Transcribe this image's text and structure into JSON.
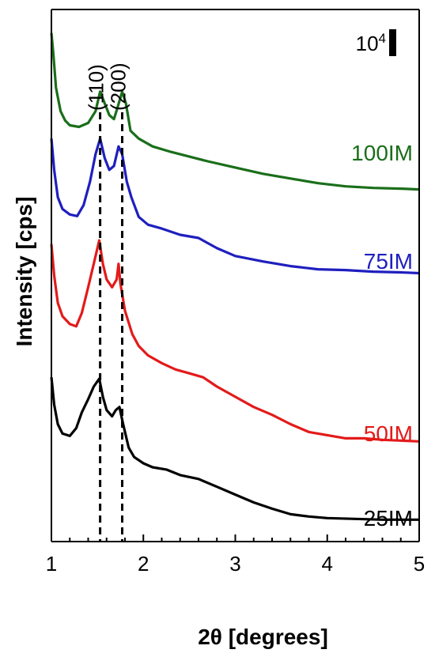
{
  "chart_data": {
    "type": "line",
    "xlabel": "2θ [degrees]",
    "ylabel": "Intensity [cps]",
    "xlim": [
      1,
      5
    ],
    "x_ticks": [
      "1",
      "2",
      "3",
      "4",
      "5"
    ],
    "y_ticks_shown": false,
    "grid": false,
    "scale_bar": {
      "label": "10",
      "exponent": "4"
    },
    "reference_lines": [
      {
        "label": "(110)",
        "x": 1.53
      },
      {
        "label": "(200)",
        "x": 1.77
      }
    ],
    "series": [
      {
        "name": "100IM",
        "color": "#1a6e1a",
        "points": [
          [
            1.0,
            8.3
          ],
          [
            1.02,
            8.05
          ],
          [
            1.05,
            7.6
          ],
          [
            1.1,
            7.3
          ],
          [
            1.15,
            7.18
          ],
          [
            1.2,
            7.12
          ],
          [
            1.3,
            7.1
          ],
          [
            1.4,
            7.15
          ],
          [
            1.48,
            7.3
          ],
          [
            1.53,
            7.55
          ],
          [
            1.58,
            7.4
          ],
          [
            1.63,
            7.25
          ],
          [
            1.68,
            7.2
          ],
          [
            1.72,
            7.35
          ],
          [
            1.77,
            7.55
          ],
          [
            1.81,
            7.4
          ],
          [
            1.86,
            7.05
          ],
          [
            1.95,
            6.95
          ],
          [
            2.1,
            6.85
          ],
          [
            2.3,
            6.78
          ],
          [
            2.5,
            6.72
          ],
          [
            2.7,
            6.66
          ],
          [
            3.0,
            6.58
          ],
          [
            3.3,
            6.5
          ],
          [
            3.6,
            6.44
          ],
          [
            3.9,
            6.38
          ],
          [
            4.2,
            6.34
          ],
          [
            4.5,
            6.32
          ],
          [
            4.8,
            6.31
          ],
          [
            5.0,
            6.3
          ]
        ]
      },
      {
        "name": "75IM",
        "color": "#1f1fbf",
        "points": [
          [
            1.0,
            6.95
          ],
          [
            1.03,
            6.55
          ],
          [
            1.07,
            6.2
          ],
          [
            1.12,
            6.05
          ],
          [
            1.2,
            5.98
          ],
          [
            1.28,
            5.96
          ],
          [
            1.35,
            6.1
          ],
          [
            1.42,
            6.4
          ],
          [
            1.48,
            6.75
          ],
          [
            1.53,
            6.95
          ],
          [
            1.58,
            6.7
          ],
          [
            1.63,
            6.55
          ],
          [
            1.68,
            6.6
          ],
          [
            1.73,
            6.85
          ],
          [
            1.77,
            6.75
          ],
          [
            1.82,
            6.4
          ],
          [
            1.87,
            6.2
          ],
          [
            1.95,
            5.95
          ],
          [
            2.05,
            5.85
          ],
          [
            2.2,
            5.8
          ],
          [
            2.4,
            5.72
          ],
          [
            2.6,
            5.68
          ],
          [
            2.8,
            5.55
          ],
          [
            3.0,
            5.45
          ],
          [
            3.3,
            5.38
          ],
          [
            3.6,
            5.32
          ],
          [
            3.9,
            5.28
          ],
          [
            4.2,
            5.27
          ],
          [
            4.5,
            5.25
          ],
          [
            4.8,
            5.24
          ],
          [
            5.0,
            5.23
          ]
        ]
      },
      {
        "name": "50IM",
        "color": "#e41a1a",
        "points": [
          [
            1.0,
            5.6
          ],
          [
            1.03,
            5.2
          ],
          [
            1.07,
            4.85
          ],
          [
            1.12,
            4.68
          ],
          [
            1.2,
            4.58
          ],
          [
            1.27,
            4.55
          ],
          [
            1.33,
            4.72
          ],
          [
            1.4,
            5.05
          ],
          [
            1.46,
            5.35
          ],
          [
            1.52,
            5.65
          ],
          [
            1.56,
            5.35
          ],
          [
            1.6,
            5.15
          ],
          [
            1.66,
            5.05
          ],
          [
            1.71,
            5.15
          ],
          [
            1.73,
            5.35
          ],
          [
            1.75,
            5.1
          ],
          [
            1.8,
            4.75
          ],
          [
            1.88,
            4.45
          ],
          [
            1.95,
            4.3
          ],
          [
            2.05,
            4.18
          ],
          [
            2.2,
            4.08
          ],
          [
            2.35,
            4.0
          ],
          [
            2.5,
            3.95
          ],
          [
            2.65,
            3.9
          ],
          [
            2.8,
            3.78
          ],
          [
            3.0,
            3.65
          ],
          [
            3.2,
            3.52
          ],
          [
            3.4,
            3.42
          ],
          [
            3.6,
            3.3
          ],
          [
            3.8,
            3.2
          ],
          [
            4.0,
            3.16
          ],
          [
            4.2,
            3.12
          ],
          [
            4.4,
            3.12
          ],
          [
            4.6,
            3.1
          ],
          [
            4.8,
            3.09
          ],
          [
            5.0,
            3.08
          ]
        ]
      },
      {
        "name": "25IM",
        "color": "#000000",
        "points": [
          [
            1.0,
            3.9
          ],
          [
            1.03,
            3.55
          ],
          [
            1.07,
            3.3
          ],
          [
            1.12,
            3.18
          ],
          [
            1.2,
            3.15
          ],
          [
            1.27,
            3.25
          ],
          [
            1.33,
            3.45
          ],
          [
            1.4,
            3.62
          ],
          [
            1.46,
            3.78
          ],
          [
            1.52,
            3.88
          ],
          [
            1.56,
            3.65
          ],
          [
            1.6,
            3.48
          ],
          [
            1.66,
            3.4
          ],
          [
            1.7,
            3.48
          ],
          [
            1.74,
            3.52
          ],
          [
            1.78,
            3.3
          ],
          [
            1.84,
            3.0
          ],
          [
            1.9,
            2.88
          ],
          [
            2.0,
            2.8
          ],
          [
            2.1,
            2.75
          ],
          [
            2.25,
            2.72
          ],
          [
            2.4,
            2.65
          ],
          [
            2.6,
            2.6
          ],
          [
            2.8,
            2.5
          ],
          [
            3.0,
            2.4
          ],
          [
            3.2,
            2.3
          ],
          [
            3.4,
            2.22
          ],
          [
            3.6,
            2.15
          ],
          [
            3.8,
            2.12
          ],
          [
            4.0,
            2.1
          ],
          [
            4.3,
            2.09
          ],
          [
            4.6,
            2.08
          ],
          [
            5.0,
            2.08
          ]
        ]
      }
    ]
  }
}
